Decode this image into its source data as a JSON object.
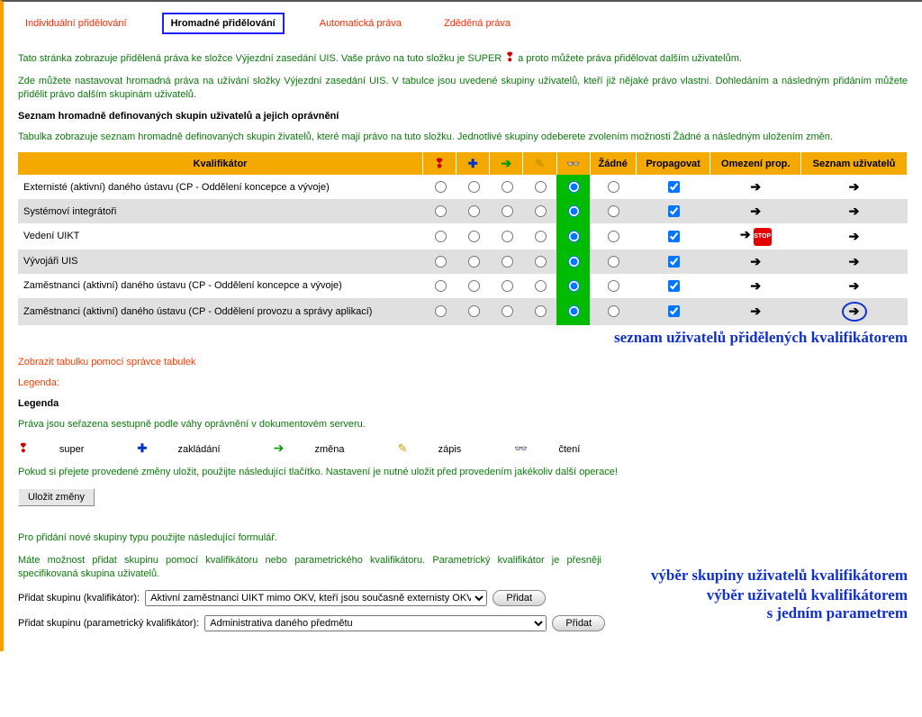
{
  "tabs": {
    "individual": "Individuální přidělování",
    "bulk": "Hromadné přidělování",
    "auto": "Automatická práva",
    "inherited": "Zděděná práva"
  },
  "intro1a": "Tato stránka zobrazuje přidělená práva ke složce Výjezdní zasedání UIS. Vaše právo na tuto složku je SUPER ",
  "intro1b": " a proto můžete práva přidělovat dalším uživatelům.",
  "intro2": "Zde můžete nastavovat hromadná práva na užívání složky Výjezdní zasedání UIS. V tabulce jsou uvedené skupiny uživatelů, kteří již nějaké právo vlastní. Dohledáním a následným přidáním můžete přidělit právo dalším skupinám uživatelů.",
  "heading1": "Seznam hromadně definovaných skupin uživatelů a jejich oprávnění",
  "intro3": "Tabulka zobrazuje seznam hromadně definovaných skupin živatelů, které mají právo na tuto složku. Jednotlivé skupiny odeberete zvolením možnosti Žádné a následným uložením změn.",
  "table": {
    "headers": {
      "qualifier": "Kvalifikátor",
      "none": "Žádné",
      "propagate": "Propagovat",
      "limit": "Omezení prop.",
      "users": "Seznam uživatelů"
    },
    "rows": [
      {
        "label": "Externisté (aktivní) daného ústavu (CP - Oddělení koncepce a vývoje)",
        "stop": false
      },
      {
        "label": "Systémoví integrátoři",
        "stop": false
      },
      {
        "label": "Vedení UIKT",
        "stop": true
      },
      {
        "label": "Vývojáři UIS",
        "stop": false
      },
      {
        "label": "Zaměstnanci (aktivní) daného ústavu (CP - Oddělení koncepce a vývoje)",
        "stop": false
      },
      {
        "label": "Zaměstnanci (aktivní) daného ústavu (CP - Oddělení provozu a správy aplikací)",
        "stop": false
      }
    ]
  },
  "annot1": "seznam uživatelů přidělených kvalifikátorem",
  "link_tablemgr": "Zobrazit tabulku pomocí správce tabulek",
  "legenda_link": "Legenda:",
  "legenda_head": "Legenda",
  "legenda_desc": "Práva jsou seřazena sestupně podle váhy oprávnění v dokumentovém serveru.",
  "legend": {
    "super": "super",
    "zakladani": "zakládání",
    "zmena": "změna",
    "zapis": "zápis",
    "cteni": "čtení"
  },
  "save_note": "Pokud si přejete provedené změny uložit, použijte následující tlačítko. Nastavení je nutné uložit před provedením jakékoliv další operace!",
  "btn_save": "Uložit změny",
  "add_note": "Pro přidání nové skupiny typu použijte následující formulář.",
  "add_desc": "Máte možnost přidat skupinu pomocí kvalifikátoru nebo parametrického kvalifikátoru. Parametrický kvalifikátor je přesněji specifikovaná skupina uživatelů.",
  "annot2": "výběr skupiny uživatelů kvalifikátorem",
  "annot3a": "výběr uživatelů kvalifikátorem",
  "annot3b": "s jedním parametrem",
  "form": {
    "label1": "Přidat skupinu (kvalifikátor):",
    "opt1": "Aktivní zaměstnanci UIKT mimo OKV, kteří jsou současně externisty OKV",
    "btn_add": "Přidat",
    "label2": "Přidat skupinu (parametrický kvalifikátor):",
    "opt2": "Administrativa daného předmětu"
  },
  "colors": {
    "accent": "#f4a900",
    "green_text": "#0a7a0a",
    "blue_annot": "#1030d0",
    "row_green": "#00bb00"
  }
}
